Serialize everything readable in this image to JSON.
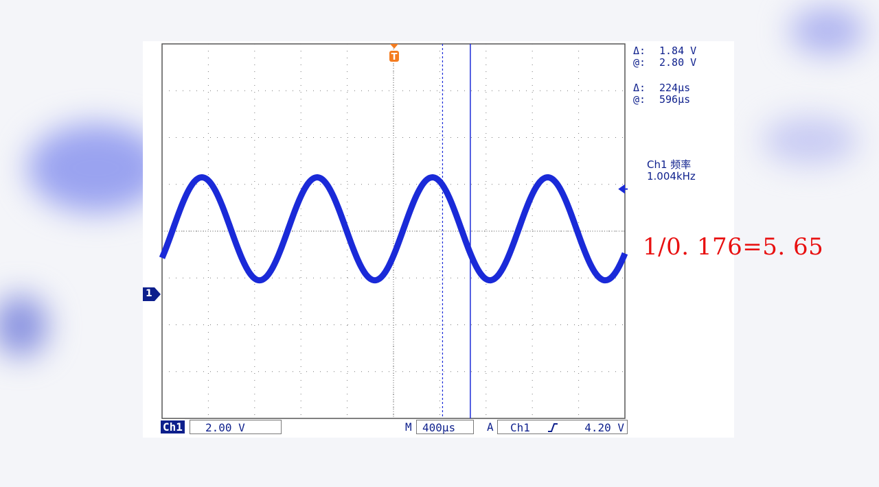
{
  "scope": {
    "cursor_amplitude": {
      "delta_label": "Δ:",
      "delta_value": "1.84 V",
      "at_label": "@:",
      "at_value": "2.80 V"
    },
    "cursor_time": {
      "delta_label": "Δ:",
      "delta_value": "224µs",
      "at_label": "@:",
      "at_value": "596µs"
    },
    "measurement": {
      "label": "Ch1 频率",
      "value": "1.004kHz"
    },
    "annotation": "1/0. 176=5. 65",
    "status_bar": {
      "channel": "Ch1",
      "volts_per_div": "2.00 V",
      "mode": "M",
      "time_per_div": "400µs",
      "trigger_mode": "A",
      "trigger_source": "Ch1",
      "trigger_slope_icon": "rising-edge-icon",
      "trigger_level": "4.20 V"
    },
    "channel_marker": "1",
    "trigger_marker": "T",
    "colors": {
      "trace": "#1a2ad8",
      "text": "#0d1f8c",
      "trigger": "#f47c20",
      "annotation": "#e81010"
    }
  },
  "waveform": {
    "frequency_khz": 1.004,
    "amplitude_v": 2.2,
    "offset_v": 2.8
  }
}
